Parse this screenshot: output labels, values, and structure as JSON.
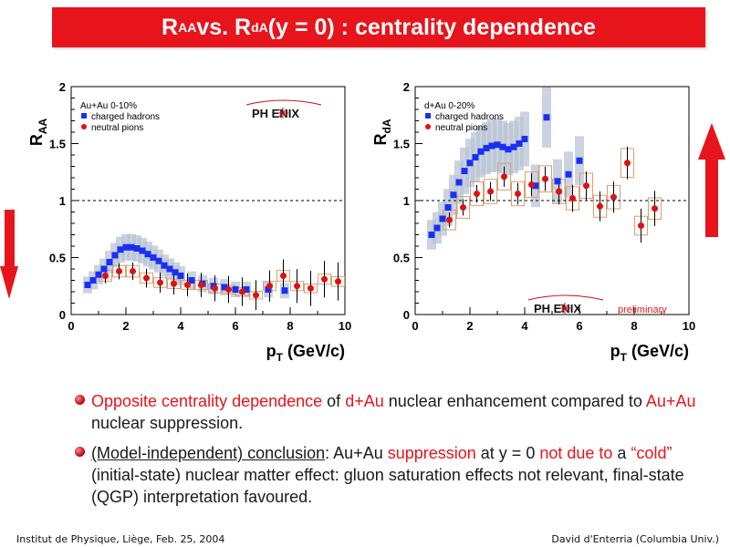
{
  "title": {
    "r": "R",
    "aa": "AA",
    "vs": " vs. R",
    "da": "dA",
    "rest": " (y = 0) : centrality dependence"
  },
  "colors": {
    "accent": "#e8141c",
    "blue": "#1a2ff5",
    "red": "#e01010",
    "band": "#b8c4d4",
    "box": "#d9a070"
  },
  "chart_data": [
    {
      "type": "scatter",
      "id": "raa",
      "ylabel_main": "R",
      "ylabel_sub": "AA",
      "xlabel_main": "p",
      "xlabel_sub": "T",
      "xlabel_unit": " (GeV/c)",
      "xlim": [
        0,
        10
      ],
      "ylim": [
        0,
        2
      ],
      "xticks": [
        "0",
        "2",
        "4",
        "6",
        "8",
        "10"
      ],
      "yticks": [
        "0",
        "0.5",
        "1",
        "1.5",
        "2"
      ],
      "legend_title": "Au+Au 0-10%",
      "logo": "PH ENIX",
      "series": [
        {
          "name": "charged hadrons",
          "color": "#1a2ff5",
          "x": [
            0.6,
            0.8,
            1.0,
            1.2,
            1.4,
            1.6,
            1.8,
            2.0,
            2.2,
            2.4,
            2.6,
            2.8,
            3.0,
            3.2,
            3.4,
            3.6,
            3.8,
            4.0,
            4.4,
            4.8,
            5.2,
            5.6,
            6.0,
            6.4,
            7.2,
            7.8
          ],
          "y": [
            0.26,
            0.3,
            0.35,
            0.4,
            0.46,
            0.52,
            0.57,
            0.59,
            0.59,
            0.58,
            0.56,
            0.53,
            0.5,
            0.47,
            0.43,
            0.4,
            0.37,
            0.34,
            0.3,
            0.27,
            0.25,
            0.24,
            0.22,
            0.22,
            0.22,
            0.21
          ]
        },
        {
          "name": "neutral pions",
          "color": "#e01010",
          "x": [
            1.25,
            1.75,
            2.25,
            2.75,
            3.25,
            3.75,
            4.25,
            4.75,
            5.25,
            5.75,
            6.25,
            6.75,
            7.25,
            7.75,
            8.25,
            8.75,
            9.25,
            9.75
          ],
          "y": [
            0.34,
            0.38,
            0.38,
            0.32,
            0.28,
            0.27,
            0.26,
            0.26,
            0.23,
            0.22,
            0.2,
            0.17,
            0.25,
            0.34,
            0.25,
            0.23,
            0.31,
            0.29
          ]
        }
      ]
    },
    {
      "type": "scatter",
      "id": "rda",
      "ylabel_main": "R",
      "ylabel_sub": "dA",
      "xlabel_main": "p",
      "xlabel_sub": "T",
      "xlabel_unit": " (GeV/c)",
      "xlim": [
        0,
        10
      ],
      "ylim": [
        0,
        2
      ],
      "xticks": [
        "0",
        "2",
        "4",
        "6",
        "8",
        "10"
      ],
      "yticks": [
        "0",
        "0.5",
        "1",
        "1.5",
        "2"
      ],
      "legend_title": "d+Au 0-20%",
      "logo": "PH ENIX",
      "note": "preliminary",
      "series": [
        {
          "name": "charged hadrons",
          "color": "#1a2ff5",
          "x": [
            0.6,
            0.8,
            1.0,
            1.2,
            1.4,
            1.6,
            1.8,
            2.0,
            2.2,
            2.4,
            2.6,
            2.8,
            3.0,
            3.2,
            3.4,
            3.6,
            3.8,
            4.0,
            4.4,
            4.8,
            5.2,
            5.6,
            6.0
          ],
          "y": [
            0.7,
            0.76,
            0.84,
            0.94,
            1.05,
            1.16,
            1.26,
            1.33,
            1.38,
            1.43,
            1.46,
            1.48,
            1.49,
            1.47,
            1.45,
            1.47,
            1.5,
            1.54,
            1.13,
            1.73,
            1.17,
            1.23,
            1.35
          ]
        },
        {
          "name": "neutral pions",
          "color": "#e01010",
          "x": [
            1.25,
            1.75,
            2.25,
            2.75,
            3.25,
            3.75,
            4.25,
            4.75,
            5.25,
            5.75,
            6.25,
            6.75,
            7.25,
            7.75,
            8.25,
            8.75
          ],
          "y": [
            0.83,
            0.94,
            1.06,
            1.08,
            1.21,
            1.06,
            1.14,
            1.19,
            1.08,
            1.02,
            1.13,
            0.95,
            1.03,
            1.33,
            0.78,
            0.93
          ]
        }
      ]
    }
  ],
  "bullets": {
    "b1": {
      "p1": "Opposite centrality dependence",
      "p2": " of ",
      "p3": "d+Au",
      "p4": " nuclear enhancement compared to ",
      "p5": "Au+Au",
      "p6": " nuclear suppression."
    },
    "b2": {
      "p1": "(Model-independent) conclusion",
      "p2": ": Au+Au ",
      "p3": "suppression",
      "p4": " at y = 0 ",
      "p5": "not due to",
      "p6": " a ",
      "p7": "“cold”",
      "p8": " (initial-state) nuclear matter effect: gluon saturation effects not relevant, final-state (QGP) interpretation favoured."
    }
  },
  "footer": {
    "left": "Institut de Physique, Liège, Feb. 25, 2004",
    "right": "David d'Enterria (Columbia Univ.)"
  }
}
